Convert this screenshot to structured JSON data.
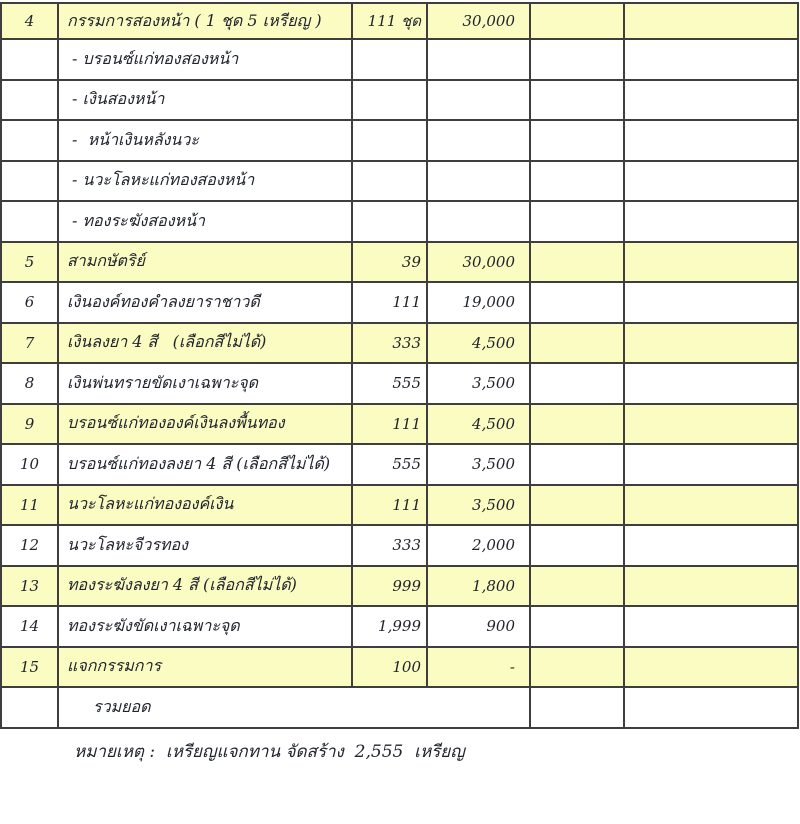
{
  "colors": {
    "row_highlight": "#fbfcc1",
    "border": "#3e3e3e",
    "text": "#20242e",
    "background": "#ffffff"
  },
  "table": {
    "columns": [
      "no",
      "description",
      "quantity",
      "price",
      "blank1",
      "blank2"
    ],
    "rows": [
      {
        "no": "4",
        "desc": "กรรมการสองหน้า ( 1 ชุด 5 เหรียญ )",
        "qty": "111 ชุด",
        "price": "30,000",
        "yellow": true,
        "sub": false
      },
      {
        "no": "",
        "desc": "- บรอนซ์แก่ทองสองหน้า",
        "qty": "",
        "price": "",
        "yellow": false,
        "sub": true
      },
      {
        "no": "",
        "desc": "- เงินสองหน้า",
        "qty": "",
        "price": "",
        "yellow": false,
        "sub": true
      },
      {
        "no": "",
        "desc": "-  หน้าเงินหลังนวะ",
        "qty": "",
        "price": "",
        "yellow": false,
        "sub": true
      },
      {
        "no": "",
        "desc": "- นวะโลหะแก่ทองสองหน้า",
        "qty": "",
        "price": "",
        "yellow": false,
        "sub": true
      },
      {
        "no": "",
        "desc": "- ทองระฆังสองหน้า",
        "qty": "",
        "price": "",
        "yellow": false,
        "sub": true
      },
      {
        "no": "5",
        "desc": "สามกษัตริย์",
        "qty": "39",
        "price": "30,000",
        "yellow": true,
        "sub": false
      },
      {
        "no": "6",
        "desc": "เงินองค์ทองคำลงยาราชาวดี",
        "qty": "111",
        "price": "19,000",
        "yellow": false,
        "sub": false
      },
      {
        "no": "7",
        "desc": "เงินลงยา 4 สี   (เลือกสีไม่ได้)",
        "qty": "333",
        "price": "4,500",
        "yellow": true,
        "sub": false
      },
      {
        "no": "8",
        "desc": "เงินพ่นทรายขัดเงาเฉพาะจุด",
        "qty": "555",
        "price": "3,500",
        "yellow": false,
        "sub": false
      },
      {
        "no": "9",
        "desc": "บรอนซ์แก่ทององค์เงินลงพื้นทอง",
        "qty": "111",
        "price": "4,500",
        "yellow": true,
        "sub": false
      },
      {
        "no": "10",
        "desc": "บรอนซ์แก่ทองลงยา 4 สี (เลือกสีไม่ได้)",
        "qty": "555",
        "price": "3,500",
        "yellow": false,
        "sub": false
      },
      {
        "no": "11",
        "desc": "นวะโลหะแก่ทององค์เงิน",
        "qty": "111",
        "price": "3,500",
        "yellow": true,
        "sub": false
      },
      {
        "no": "12",
        "desc": "นวะโลหะจีวรทอง",
        "qty": "333",
        "price": "2,000",
        "yellow": false,
        "sub": false
      },
      {
        "no": "13",
        "desc": "ทองระฆังลงยา 4 สี (เลือกสีไม่ได้)",
        "qty": "999",
        "price": "1,800",
        "yellow": true,
        "sub": false
      },
      {
        "no": "14",
        "desc": "ทองระฆังขัดเงาเฉพาะจุด",
        "qty": "1,999",
        "price": "900",
        "yellow": false,
        "sub": false
      },
      {
        "no": "15",
        "desc": "แจกกรรมการ",
        "qty": "100",
        "price": "-",
        "yellow": true,
        "sub": false
      }
    ],
    "total_label": "รวมยอด"
  },
  "footnote": "หมายเหตุ :  เหรียญแจกทาน จัดสร้าง  2,555  เหรียญ"
}
